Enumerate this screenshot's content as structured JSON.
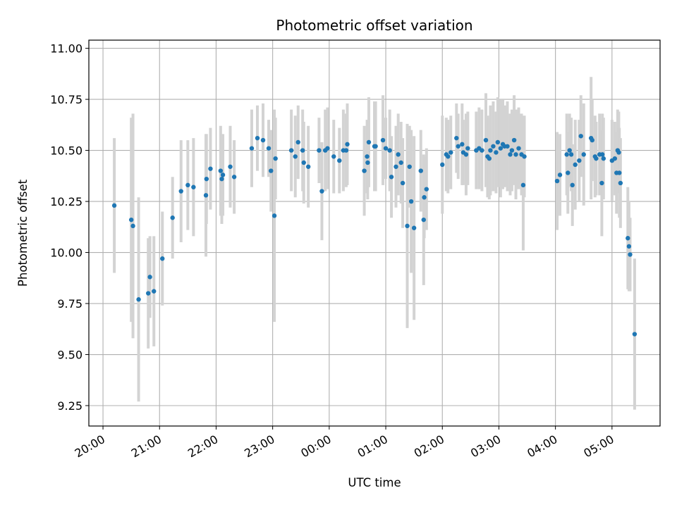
{
  "chart_data": {
    "type": "scatter",
    "title": "Photometric offset variation",
    "xlabel": "UTC time",
    "ylabel": "Photometric offset",
    "grid": true,
    "error_bar_color": "#d3d3d3",
    "point_color": "#1f77b4",
    "xlim_hours": [
      19.75,
      29.85
    ],
    "ylim": [
      9.15,
      11.04
    ],
    "x_ticks": [
      {
        "label": "20:00",
        "hour": 20
      },
      {
        "label": "21:00",
        "hour": 21
      },
      {
        "label": "22:00",
        "hour": 22
      },
      {
        "label": "23:00",
        "hour": 23
      },
      {
        "label": "00:00",
        "hour": 24
      },
      {
        "label": "01:00",
        "hour": 25
      },
      {
        "label": "02:00",
        "hour": 26
      },
      {
        "label": "03:00",
        "hour": 27
      },
      {
        "label": "04:00",
        "hour": 28
      },
      {
        "label": "05:00",
        "hour": 29
      }
    ],
    "y_ticks": [
      {
        "label": "9.25",
        "value": 9.25
      },
      {
        "label": "9.50",
        "value": 9.5
      },
      {
        "label": "9.75",
        "value": 9.75
      },
      {
        "label": "10.00",
        "value": 10.0
      },
      {
        "label": "10.25",
        "value": 10.25
      },
      {
        "label": "10.50",
        "value": 10.5
      },
      {
        "label": "10.75",
        "value": 10.75
      },
      {
        "label": "11.00",
        "value": 11.0
      }
    ],
    "points": [
      [
        20.2,
        10.23,
        0.33
      ],
      [
        20.5,
        10.16,
        0.5
      ],
      [
        20.53,
        10.13,
        0.55
      ],
      [
        20.63,
        9.77,
        0.5
      ],
      [
        20.8,
        9.8,
        0.27
      ],
      [
        20.83,
        9.88,
        0.2
      ],
      [
        20.9,
        9.81,
        0.27
      ],
      [
        21.05,
        9.97,
        0.23
      ],
      [
        21.23,
        10.17,
        0.2
      ],
      [
        21.38,
        10.3,
        0.25
      ],
      [
        21.5,
        10.33,
        0.22
      ],
      [
        21.6,
        10.32,
        0.24
      ],
      [
        21.82,
        10.28,
        0.3
      ],
      [
        21.83,
        10.36,
        0.22
      ],
      [
        21.9,
        10.41,
        0.2
      ],
      [
        22.08,
        10.4,
        0.22
      ],
      [
        22.1,
        10.36,
        0.22
      ],
      [
        22.12,
        10.38,
        0.2
      ],
      [
        22.25,
        10.42,
        0.2
      ],
      [
        22.32,
        10.37,
        0.18
      ],
      [
        22.63,
        10.51,
        0.19
      ],
      [
        22.73,
        10.56,
        0.16
      ],
      [
        22.83,
        10.55,
        0.18
      ],
      [
        22.93,
        10.51,
        0.14
      ],
      [
        22.97,
        10.4,
        0.2
      ],
      [
        23.03,
        10.18,
        0.52
      ],
      [
        23.05,
        10.46,
        0.2
      ],
      [
        23.33,
        10.5,
        0.2
      ],
      [
        23.4,
        10.47,
        0.2
      ],
      [
        23.45,
        10.54,
        0.18
      ],
      [
        23.53,
        10.5,
        0.2
      ],
      [
        23.55,
        10.44,
        0.2
      ],
      [
        23.63,
        10.42,
        0.2
      ],
      [
        23.82,
        10.5,
        0.16
      ],
      [
        23.87,
        10.3,
        0.24
      ],
      [
        23.93,
        10.5,
        0.2
      ],
      [
        23.97,
        10.51,
        0.2
      ],
      [
        24.08,
        10.47,
        0.18
      ],
      [
        24.18,
        10.45,
        0.16
      ],
      [
        24.25,
        10.5,
        0.2
      ],
      [
        24.3,
        10.5,
        0.18
      ],
      [
        24.32,
        10.53,
        0.2
      ],
      [
        24.62,
        10.4,
        0.22
      ],
      [
        24.67,
        10.47,
        0.18
      ],
      [
        24.68,
        10.44,
        0.18
      ],
      [
        24.7,
        10.54,
        0.22
      ],
      [
        24.8,
        10.52,
        0.22
      ],
      [
        24.82,
        10.52,
        0.22
      ],
      [
        24.95,
        10.55,
        0.22
      ],
      [
        25.0,
        10.51,
        0.15
      ],
      [
        25.07,
        10.5,
        0.2
      ],
      [
        25.1,
        10.37,
        0.2
      ],
      [
        25.18,
        10.42,
        0.2
      ],
      [
        25.22,
        10.48,
        0.2
      ],
      [
        25.27,
        10.44,
        0.2
      ],
      [
        25.3,
        10.34,
        0.22
      ],
      [
        25.38,
        10.13,
        0.5
      ],
      [
        25.42,
        10.42,
        0.2
      ],
      [
        25.45,
        10.25,
        0.35
      ],
      [
        25.5,
        10.12,
        0.45
      ],
      [
        25.62,
        10.4,
        0.2
      ],
      [
        25.67,
        10.16,
        0.32
      ],
      [
        25.68,
        10.27,
        0.2
      ],
      [
        25.72,
        10.31,
        0.2
      ],
      [
        26.0,
        10.43,
        0.24
      ],
      [
        26.07,
        10.48,
        0.18
      ],
      [
        26.1,
        10.47,
        0.18
      ],
      [
        26.15,
        10.49,
        0.18
      ],
      [
        26.25,
        10.56,
        0.17
      ],
      [
        26.28,
        10.52,
        0.16
      ],
      [
        26.35,
        10.53,
        0.2
      ],
      [
        26.37,
        10.49,
        0.16
      ],
      [
        26.42,
        10.48,
        0.2
      ],
      [
        26.45,
        10.51,
        0.18
      ],
      [
        26.6,
        10.5,
        0.19
      ],
      [
        26.65,
        10.51,
        0.2
      ],
      [
        26.7,
        10.5,
        0.2
      ],
      [
        26.77,
        10.55,
        0.23
      ],
      [
        26.8,
        10.47,
        0.2
      ],
      [
        26.83,
        10.46,
        0.2
      ],
      [
        26.85,
        10.5,
        0.22
      ],
      [
        26.9,
        10.52,
        0.22
      ],
      [
        26.95,
        10.49,
        0.2
      ],
      [
        26.98,
        10.54,
        0.22
      ],
      [
        27.03,
        10.51,
        0.24
      ],
      [
        27.07,
        10.53,
        0.22
      ],
      [
        27.1,
        10.52,
        0.2
      ],
      [
        27.15,
        10.52,
        0.22
      ],
      [
        27.2,
        10.48,
        0.2
      ],
      [
        27.23,
        10.5,
        0.2
      ],
      [
        27.27,
        10.55,
        0.22
      ],
      [
        27.3,
        10.48,
        0.22
      ],
      [
        27.35,
        10.51,
        0.2
      ],
      [
        27.4,
        10.48,
        0.2
      ],
      [
        27.45,
        10.47,
        0.2
      ],
      [
        27.43,
        10.33,
        0.32
      ],
      [
        28.03,
        10.35,
        0.24
      ],
      [
        28.08,
        10.38,
        0.2
      ],
      [
        28.2,
        10.48,
        0.2
      ],
      [
        28.22,
        10.39,
        0.2
      ],
      [
        28.25,
        10.5,
        0.18
      ],
      [
        28.28,
        10.48,
        0.18
      ],
      [
        28.3,
        10.33,
        0.2
      ],
      [
        28.35,
        10.43,
        0.22
      ],
      [
        28.42,
        10.45,
        0.2
      ],
      [
        28.45,
        10.57,
        0.2
      ],
      [
        28.5,
        10.48,
        0.25
      ],
      [
        28.63,
        10.56,
        0.3
      ],
      [
        28.65,
        10.55,
        0.2
      ],
      [
        28.7,
        10.47,
        0.2
      ],
      [
        28.72,
        10.46,
        0.18
      ],
      [
        28.78,
        10.48,
        0.2
      ],
      [
        28.82,
        10.34,
        0.26
      ],
      [
        28.83,
        10.48,
        0.2
      ],
      [
        28.85,
        10.46,
        0.2
      ],
      [
        29.0,
        10.45,
        0.2
      ],
      [
        29.05,
        10.46,
        0.18
      ],
      [
        29.08,
        10.39,
        0.2
      ],
      [
        29.1,
        10.5,
        0.2
      ],
      [
        29.12,
        10.49,
        0.2
      ],
      [
        29.13,
        10.39,
        0.22
      ],
      [
        29.15,
        10.34,
        0.22
      ],
      [
        29.28,
        10.07,
        0.25
      ],
      [
        29.3,
        10.03,
        0.22
      ],
      [
        29.32,
        9.99,
        0.18
      ],
      [
        29.4,
        9.6,
        0.37
      ]
    ]
  }
}
